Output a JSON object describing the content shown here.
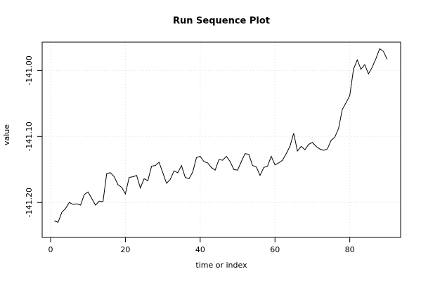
{
  "chart_data": {
    "type": "line",
    "title": "Run Sequence Plot",
    "xlabel": "time or index",
    "ylabel": "value",
    "color": "#000000",
    "grid": true,
    "xlim": [
      -2.26,
      93.6
    ],
    "ylim": [
      -141.253,
      -140.957
    ],
    "xticks": [
      0,
      20,
      40,
      60,
      80
    ],
    "yticks": [
      {
        "value": -141.2,
        "label": "-141.20"
      },
      {
        "value": -141.1,
        "label": "-141.10"
      },
      {
        "value": -141.0,
        "label": "-141.00"
      }
    ],
    "x": [
      1,
      2,
      3,
      4,
      5,
      6,
      7,
      8,
      9,
      10,
      11,
      12,
      13,
      14,
      15,
      16,
      17,
      18,
      19,
      20,
      21,
      22,
      23,
      24,
      25,
      26,
      27,
      28,
      29,
      30,
      31,
      32,
      33,
      34,
      35,
      36,
      37,
      38,
      39,
      40,
      41,
      42,
      43,
      44,
      45,
      46,
      47,
      48,
      49,
      50,
      51,
      52,
      53,
      54,
      55,
      56,
      57,
      58,
      59,
      60,
      61,
      62,
      63,
      64,
      65,
      66,
      67,
      68,
      69,
      70,
      71,
      72,
      73,
      74,
      75,
      76,
      77,
      78,
      79,
      80,
      81,
      82,
      83,
      84,
      85,
      86,
      87,
      88,
      89,
      90
    ],
    "values": [
      -141.228,
      -141.23,
      -141.215,
      -141.209,
      -141.2,
      -141.203,
      -141.202,
      -141.204,
      -141.188,
      -141.184,
      -141.194,
      -141.204,
      -141.198,
      -141.199,
      -141.156,
      -141.155,
      -141.161,
      -141.173,
      -141.177,
      -141.187,
      -141.162,
      -141.161,
      -141.159,
      -141.178,
      -141.164,
      -141.167,
      -141.145,
      -141.144,
      -141.139,
      -141.155,
      -141.171,
      -141.165,
      -141.152,
      -141.155,
      -141.144,
      -141.162,
      -141.164,
      -141.154,
      -141.132,
      -141.13,
      -141.138,
      -141.14,
      -141.147,
      -141.151,
      -141.135,
      -141.136,
      -141.13,
      -141.138,
      -141.15,
      -141.151,
      -141.138,
      -141.126,
      -141.127,
      -141.144,
      -141.146,
      -141.159,
      -141.147,
      -141.145,
      -141.13,
      -141.143,
      -141.14,
      -141.136,
      -141.126,
      -141.115,
      -141.095,
      -141.122,
      -141.115,
      -141.12,
      -141.112,
      -141.109,
      -141.115,
      -141.119,
      -141.121,
      -141.119,
      -141.106,
      -141.101,
      -141.088,
      -141.059,
      -141.049,
      -141.038,
      -140.998,
      -140.984,
      -140.998,
      -140.991,
      -141.005,
      -140.995,
      -140.982,
      -140.967,
      -140.971,
      -140.983
    ]
  }
}
